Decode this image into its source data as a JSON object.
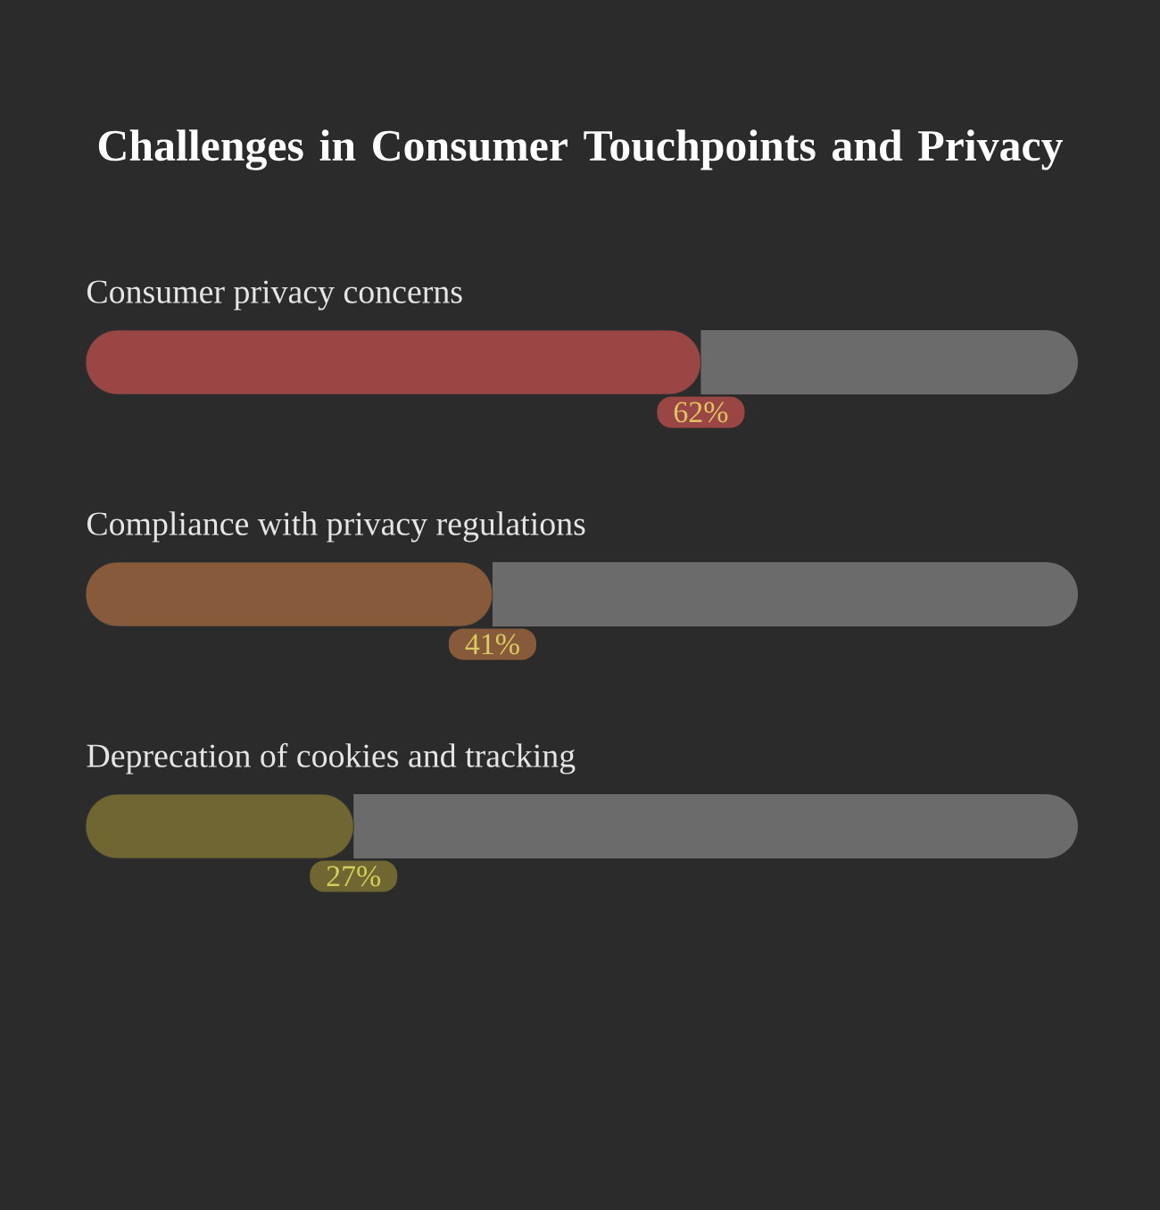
{
  "chart_data": {
    "type": "bar",
    "orientation": "horizontal",
    "stacked": true,
    "title": "Challenges in Consumer Touchpoints and Privacy",
    "categories": [
      "Consumer privacy concerns",
      "Compliance with privacy regulations",
      "Deprecation of cookies and tracking"
    ],
    "series": [
      {
        "colors": [
          "#9a4644",
          "#875a3b",
          "#6f6631"
        ],
        "values": [
          62,
          41,
          27
        ],
        "value_labels": [
          "62%",
          "41%",
          "27%"
        ]
      },
      {
        "color": "#6b6b6b",
        "values": [
          38,
          59,
          73
        ]
      }
    ]
  }
}
